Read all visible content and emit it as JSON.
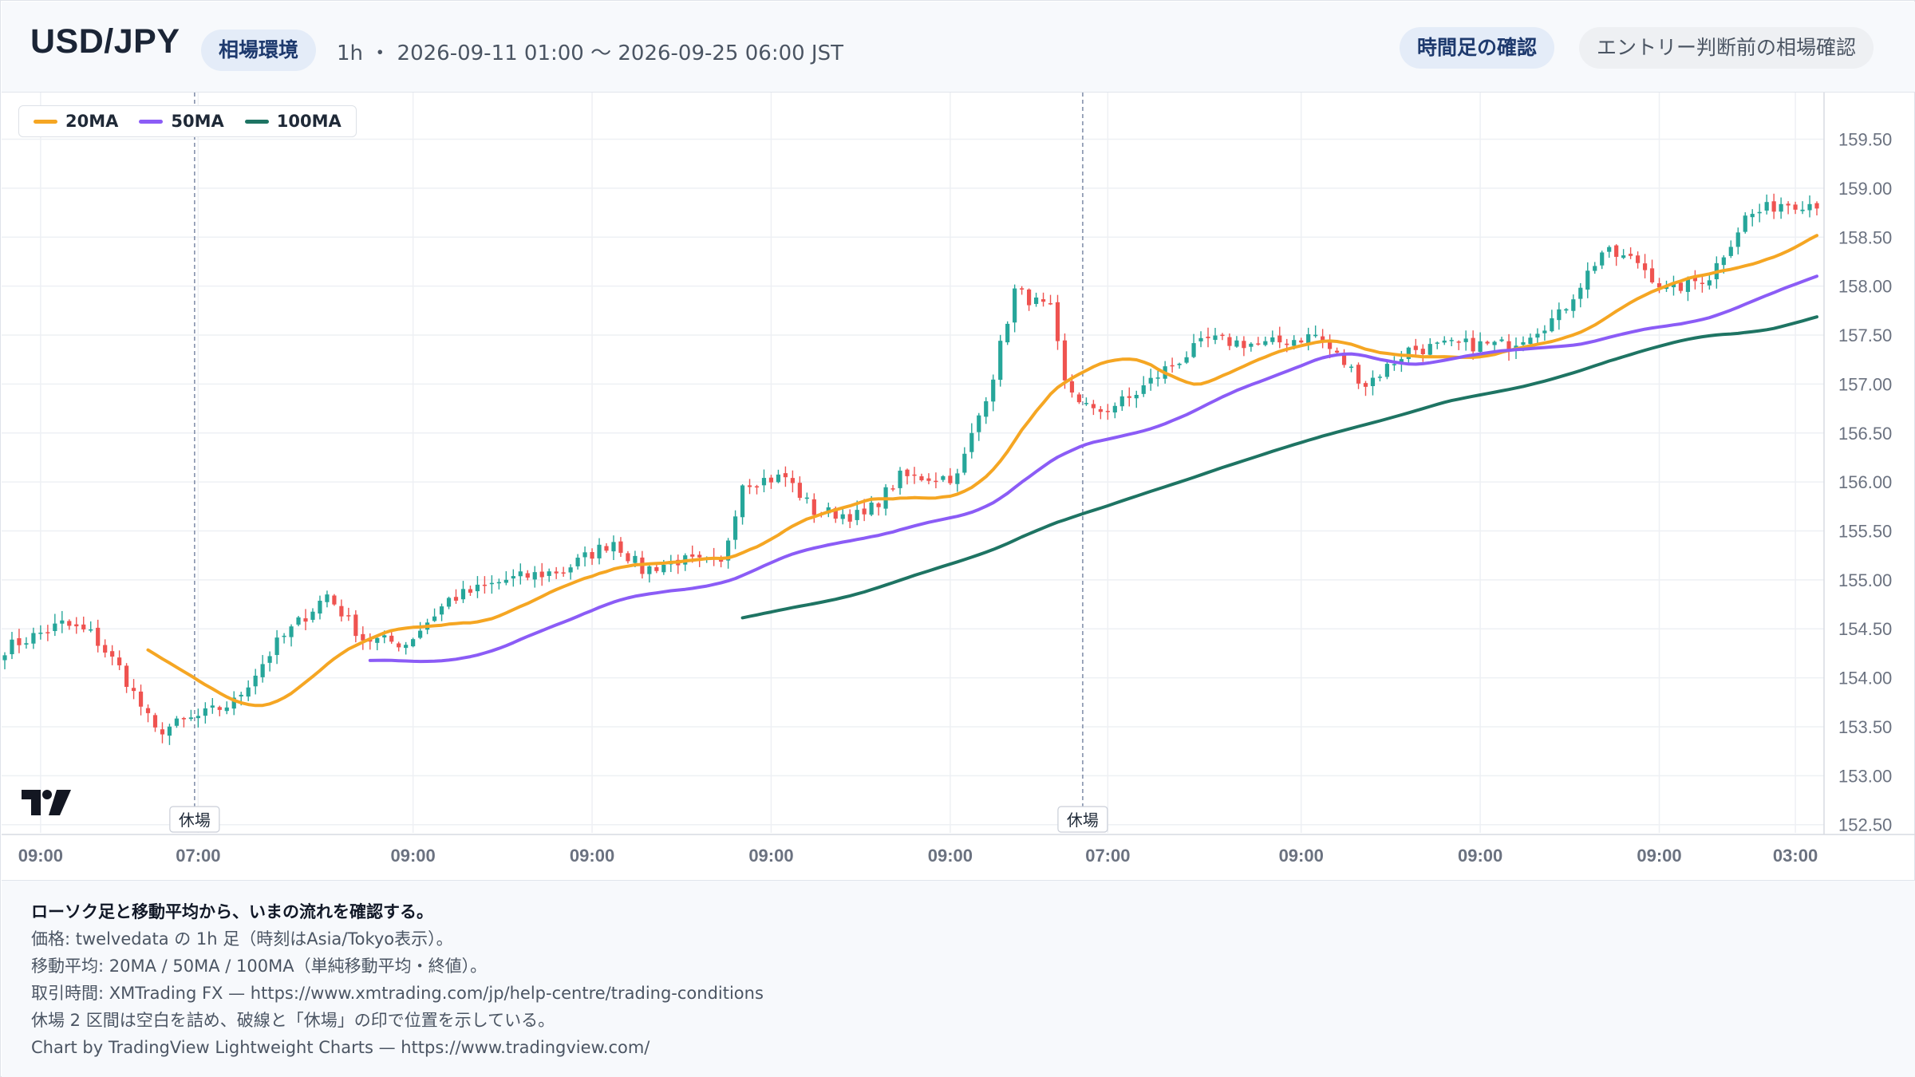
{
  "header": {
    "symbol": "USD/JPY",
    "context_pill": "相場環境",
    "meta": "1h ・ 2026-09-11 01:00 〜 2026-09-25 06:00 JST",
    "check_pill": "時間足の確認",
    "entry_pill": "エントリー判断前の相場確認"
  },
  "legend": [
    {
      "label": "20MA",
      "color": "#f5a623"
    },
    {
      "label": "50MA",
      "color": "#8b5cf6"
    },
    {
      "label": "100MA",
      "color": "#1e7463"
    }
  ],
  "colors": {
    "up": "#26a69a",
    "down": "#ef5350",
    "grid": "#eef0f4",
    "axis_text": "#6b7280",
    "break_line": "#7c8aa6"
  },
  "footer": {
    "title": "ローソク足と移動平均から、いまの流れを確認する。",
    "lines": [
      "価格: twelvedata の 1h 足（時刻はAsia/Tokyo表示）。",
      "移動平均: 20MA / 50MA / 100MA（単純移動平均・終値）。",
      "取引時間: XMTrading FX — https://www.xmtrading.com/jp/help-centre/trading-conditions",
      "休場 2 区間は空白を詰め、破線と「休場」の印で位置を示している。",
      "Chart by TradingView Lightweight Charts — https://www.tradingview.com/"
    ]
  },
  "chart_data": {
    "type": "candlestick",
    "instrument": "USD/JPY",
    "timeframe": "1h",
    "ylim": [
      152.4,
      159.7
    ],
    "y_ticks": [
      152.5,
      153.0,
      153.5,
      154.0,
      154.5,
      155.0,
      155.5,
      156.0,
      156.5,
      157.0,
      157.5,
      158.0,
      158.5,
      159.0,
      159.5
    ],
    "y_tick_labels": [
      "152.50",
      "153.00",
      "153.50",
      "154.00",
      "154.50",
      "155.00",
      "155.50",
      "156.00",
      "156.50",
      "157.00",
      "157.50",
      "158.00",
      "158.50",
      "159.00",
      "159.50"
    ],
    "x_tick_labels": [
      "09:00",
      "07:00",
      "09:00",
      "09:00",
      "09:00",
      "09:00",
      "07:00",
      "09:00",
      "09:00",
      "09:00",
      "03:00"
    ],
    "x_tick_bars": [
      5,
      27,
      57,
      82,
      107,
      132,
      154,
      181,
      206,
      231,
      250
    ],
    "market_breaks": [
      {
        "label": "休場",
        "bar": 26.5
      },
      {
        "label": "休場",
        "bar": 150.5
      }
    ],
    "candle_count": 254,
    "close_anchors": [
      [
        0,
        154.3
      ],
      [
        8,
        154.55
      ],
      [
        12,
        154.45
      ],
      [
        16,
        154.1
      ],
      [
        21,
        153.45
      ],
      [
        27,
        153.6
      ],
      [
        32,
        153.75
      ],
      [
        38,
        154.35
      ],
      [
        45,
        154.85
      ],
      [
        50,
        154.4
      ],
      [
        56,
        154.35
      ],
      [
        62,
        154.8
      ],
      [
        70,
        155.0
      ],
      [
        78,
        155.1
      ],
      [
        85,
        155.4
      ],
      [
        89,
        155.1
      ],
      [
        94,
        155.2
      ],
      [
        100,
        155.15
      ],
      [
        103,
        156.0
      ],
      [
        109,
        156.05
      ],
      [
        113,
        155.7
      ],
      [
        120,
        155.65
      ],
      [
        125,
        156.05
      ],
      [
        133,
        156.05
      ],
      [
        138,
        157.1
      ],
      [
        141,
        157.95
      ],
      [
        146,
        157.75
      ],
      [
        148,
        157.0
      ],
      [
        152,
        156.7
      ],
      [
        157,
        156.85
      ],
      [
        162,
        157.15
      ],
      [
        168,
        157.45
      ],
      [
        176,
        157.4
      ],
      [
        183,
        157.5
      ],
      [
        190,
        157.0
      ],
      [
        196,
        157.35
      ],
      [
        203,
        157.4
      ],
      [
        210,
        157.4
      ],
      [
        217,
        157.7
      ],
      [
        223,
        158.35
      ],
      [
        228,
        158.25
      ],
      [
        232,
        157.95
      ],
      [
        238,
        158.1
      ],
      [
        243,
        158.7
      ],
      [
        248,
        158.85
      ],
      [
        253,
        158.85
      ]
    ],
    "series": [
      {
        "name": "20MA",
        "period": 20,
        "start_bar": 20,
        "start_value": 154.3,
        "end_value": 158.6
      },
      {
        "name": "50MA",
        "period": 50,
        "start_bar": 51,
        "start_value": 154.15,
        "end_value": 158.2
      },
      {
        "name": "100MA",
        "period": 100,
        "start_bar": 103,
        "start_value": 154.6,
        "end_value": 157.72
      }
    ],
    "title": "",
    "xlabel": "",
    "ylabel": "",
    "grid": true,
    "legend_position": "top-left",
    "price_scale": "right"
  }
}
